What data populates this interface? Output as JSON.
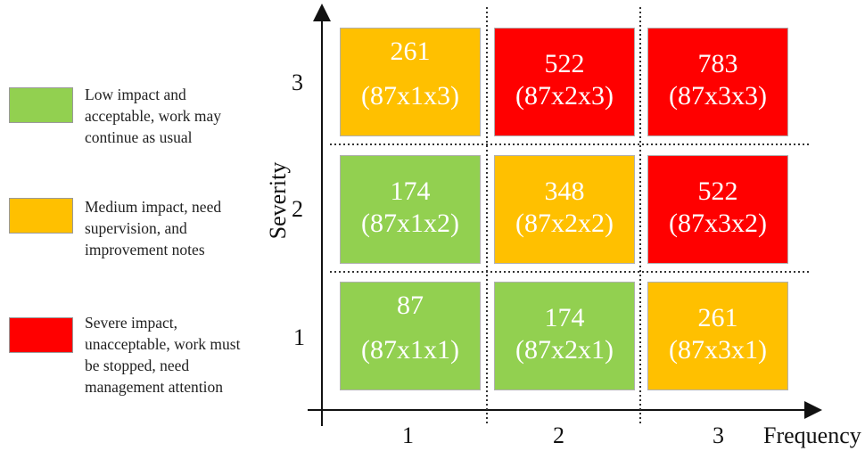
{
  "colors": {
    "green": "#92D050",
    "amber": "#FFC000",
    "red": "#FF0000"
  },
  "legend": [
    {
      "color": "green",
      "text": "Low impact and acceptable, work may continue as usual"
    },
    {
      "color": "amber",
      "text": "Medium impact, need supervision, and improvement notes"
    },
    {
      "color": "red",
      "text": "Severe impact, unacceptable, work must be stopped, need management attention"
    }
  ],
  "axes": {
    "y_title": "Severity",
    "x_title": "Frequency",
    "y_ticks": [
      "3",
      "2",
      "1"
    ],
    "x_ticks": [
      "1",
      "2",
      "3"
    ]
  },
  "matrix": {
    "rows": [
      [
        {
          "value": "261",
          "formula": "(87x1x3)",
          "color": "amber"
        },
        {
          "value": "522",
          "formula": "(87x2x3)",
          "color": "red"
        },
        {
          "value": "783",
          "formula": "(87x3x3)",
          "color": "red"
        }
      ],
      [
        {
          "value": "174",
          "formula": "(87x1x2)",
          "color": "green"
        },
        {
          "value": "348",
          "formula": "(87x2x2)",
          "color": "amber"
        },
        {
          "value": "522",
          "formula": "(87x3x2)",
          "color": "red"
        }
      ],
      [
        {
          "value": "87",
          "formula": "(87x1x1)",
          "color": "green"
        },
        {
          "value": "174",
          "formula": "(87x2x1)",
          "color": "green"
        },
        {
          "value": "261",
          "formula": "(87x3x1)",
          "color": "amber"
        }
      ]
    ]
  }
}
